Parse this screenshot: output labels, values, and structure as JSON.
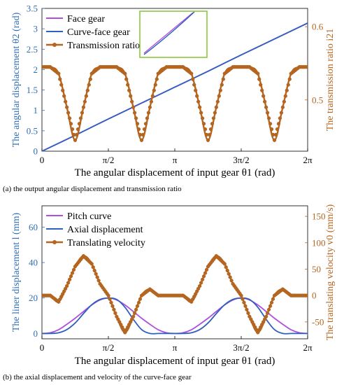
{
  "captions": {
    "a": "(a) the output angular displacement and transmission ratio",
    "b": "(b) the axial displacement and velocity of the curve-face gear"
  },
  "chart_data": [
    {
      "type": "line",
      "panel": "a",
      "xlabel": "The angular displacement of input gear θ1 (rad)",
      "ylabel_left": "The angular displacement θ2 (rad)",
      "ylabel_right": "The transmission ratio i21",
      "x_tick_labels": [
        "0",
        "π/2",
        "π",
        "3π/2",
        "2π"
      ],
      "xlim": [
        0,
        6.2832
      ],
      "ylim_left": [
        0,
        3.5
      ],
      "y_ticks_left": [
        "0",
        "0.5",
        "1",
        "1.5",
        "2",
        "2.5",
        "3",
        "3.5"
      ],
      "ylim_right": [
        0.43,
        0.625
      ],
      "y_ticks_right": [
        "0.5",
        "0.6"
      ],
      "legend_placement": "top-left",
      "inset": "zoomed view of the face gear and curve-face gear curves",
      "series": [
        {
          "name": "Face gear",
          "axis": "left",
          "color": "#b04fe0",
          "x": [
            0,
            0.7854,
            1.5708,
            2.3562,
            3.1416,
            3.927,
            4.7124,
            5.4978,
            6.2832
          ],
          "y": [
            0,
            0.39,
            0.79,
            1.18,
            1.57,
            1.96,
            2.36,
            2.75,
            3.14
          ]
        },
        {
          "name": "Curve-face gear",
          "axis": "left",
          "color": "#2f5fbf",
          "x": [
            0,
            0.7854,
            1.5708,
            2.3562,
            3.1416,
            3.927,
            4.7124,
            5.4978,
            6.2832
          ],
          "y": [
            0,
            0.39,
            0.79,
            1.18,
            1.57,
            1.96,
            2.36,
            2.75,
            3.14
          ]
        },
        {
          "name": "Transmission ratio",
          "axis": "right",
          "color": "#b4651f",
          "x": [
            0,
            0.196,
            0.393,
            0.589,
            0.785,
            0.982,
            1.178,
            1.374,
            1.571,
            1.767,
            1.963,
            2.16,
            2.356,
            2.553,
            2.749,
            2.945,
            3.142,
            3.338,
            3.534,
            3.731,
            3.927,
            4.123,
            4.32,
            4.516,
            4.712,
            4.909,
            5.105,
            5.301,
            5.498,
            5.694,
            5.89,
            6.087,
            6.283
          ],
          "y": [
            0.545,
            0.545,
            0.536,
            0.49,
            0.445,
            0.49,
            0.536,
            0.545,
            0.545,
            0.545,
            0.536,
            0.49,
            0.445,
            0.49,
            0.536,
            0.545,
            0.545,
            0.545,
            0.536,
            0.49,
            0.445,
            0.49,
            0.536,
            0.545,
            0.545,
            0.545,
            0.536,
            0.49,
            0.445,
            0.49,
            0.536,
            0.545,
            0.545
          ]
        }
      ]
    },
    {
      "type": "line",
      "panel": "b",
      "xlabel": "The angular displacement of input gear θ1 (rad)",
      "ylabel_left": "The liner displacement l (mm)",
      "ylabel_right": "The translating velocity v0 (mm/s)",
      "x_tick_labels": [
        "0",
        "π/2",
        "π",
        "3π/2",
        "2π"
      ],
      "xlim": [
        0,
        6.2832
      ],
      "ylim_left": [
        -3,
        72
      ],
      "y_ticks_left": [
        "0",
        "20",
        "40",
        "60"
      ],
      "ylim_right": [
        -82,
        170
      ],
      "y_ticks_right": [
        "-50",
        "0",
        "50",
        "100",
        "150"
      ],
      "legend_placement": "top-left",
      "series": [
        {
          "name": "Pitch curve",
          "axis": "left",
          "color": "#b04fe0",
          "x": [
            0,
            0.196,
            0.393,
            0.589,
            0.785,
            0.982,
            1.178,
            1.374,
            1.571,
            1.767,
            1.963,
            2.16,
            2.356,
            2.553,
            2.749,
            2.945,
            3.142,
            3.338,
            3.534,
            3.731,
            3.927,
            4.123,
            4.32,
            4.516,
            4.712,
            4.909,
            5.105,
            5.301,
            5.498,
            5.694,
            5.89,
            6.087,
            6.283
          ],
          "y": [
            0,
            0.4,
            2.1,
            5.2,
            8.6,
            12.4,
            16.1,
            18.9,
            20,
            18.9,
            16.1,
            12.4,
            8.6,
            5.2,
            2.1,
            0.4,
            0,
            0.4,
            2.1,
            5.2,
            8.6,
            12.4,
            16.1,
            18.9,
            20,
            18.9,
            16.1,
            12.4,
            8.6,
            5.2,
            2.1,
            0.4,
            0
          ]
        },
        {
          "name": "Axial displacement",
          "axis": "left",
          "color": "#2f5fbf",
          "x": [
            0,
            0.196,
            0.393,
            0.589,
            0.785,
            0.982,
            1.178,
            1.374,
            1.571,
            1.767,
            1.963,
            2.16,
            2.356,
            2.553,
            2.749,
            2.945,
            3.142,
            3.338,
            3.534,
            3.731,
            3.927,
            4.123,
            4.32,
            4.516,
            4.712,
            4.909,
            5.105,
            5.301,
            5.498,
            5.694,
            5.89,
            6.087,
            6.283
          ],
          "y": [
            0,
            0,
            0.4,
            2.2,
            5.9,
            11.2,
            16.2,
            19.2,
            20,
            19.2,
            14.8,
            8,
            2.2,
            0,
            0,
            0,
            0,
            0,
            0.4,
            2.2,
            5.9,
            11.2,
            16.2,
            19.2,
            20,
            19.2,
            14.8,
            8,
            2.2,
            0,
            0,
            0,
            0
          ]
        },
        {
          "name": "Translating velocity",
          "axis": "right",
          "color": "#b4651f",
          "x": [
            0,
            0.196,
            0.393,
            0.589,
            0.785,
            0.982,
            1.178,
            1.374,
            1.571,
            1.767,
            1.963,
            2.16,
            2.356,
            2.553,
            2.749,
            2.945,
            3.142,
            3.338,
            3.534,
            3.731,
            3.927,
            4.123,
            4.32,
            4.516,
            4.712,
            4.909,
            5.105,
            5.301,
            5.498,
            5.694,
            5.89,
            6.087,
            6.283
          ],
          "y": [
            0,
            0,
            -12,
            18,
            55,
            75,
            60,
            22,
            0,
            -40,
            -70,
            -40,
            0,
            12,
            0,
            0,
            0,
            0,
            -12,
            18,
            55,
            75,
            60,
            22,
            0,
            -40,
            -70,
            -40,
            0,
            12,
            0,
            0,
            0
          ]
        }
      ]
    }
  ]
}
